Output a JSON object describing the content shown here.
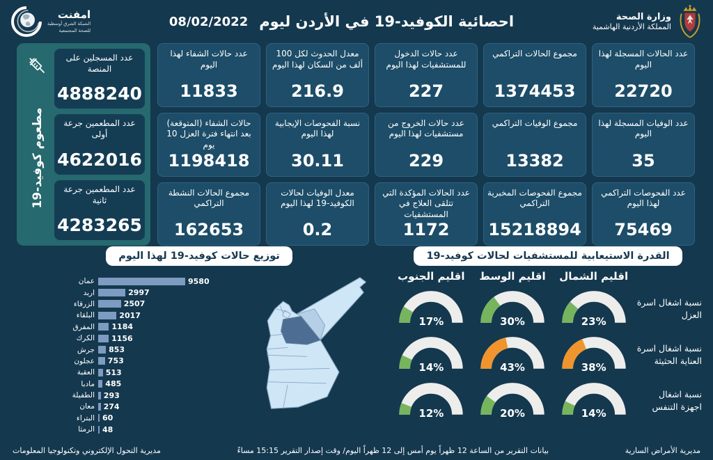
{
  "colors": {
    "green": "#76b55e",
    "orange": "#f0952d",
    "bar": "#7e9bc1",
    "gauge_track": "#ededec",
    "background": "#14384e",
    "card": "#1d4d68",
    "teal_panel": "#26696f"
  },
  "header": {
    "ministry": {
      "line1": "وزارة الصحة",
      "line2": "المملكة الأردنية الهاشمية"
    },
    "title": "احصائية الكوفيد-19 في الأردن ليوم",
    "date": "08/02/2022",
    "emphnet": {
      "name": "امفنت",
      "line1": "الشبكة الشرق أوسطية",
      "line2": "للصحة المجتمعية"
    }
  },
  "vaccination": {
    "side_label": "مطعوم كوفيد-19",
    "cards": [
      {
        "label": "عدد المسجلين على المنصة",
        "value": "4888240"
      },
      {
        "label": "عدد المطعمين جرعة أولى",
        "value": "4622016"
      },
      {
        "label": "عدد المطعمين جرعة ثانية",
        "value": "4283265"
      }
    ]
  },
  "stats": [
    {
      "label": "عدد الحالات المسجلة لهذا اليوم",
      "value": "22720"
    },
    {
      "label": "مجموع الحالات التراكمي",
      "value": "1374453"
    },
    {
      "label": "عدد حالات الدخول للمستشفيات لهذا اليوم",
      "value": "227"
    },
    {
      "label": "معدل الحدوث لكل 100 ألف من السكان لهذا اليوم",
      "value": "216.9"
    },
    {
      "label": "عدد حالات الشفاء لهذا اليوم",
      "value": "11833"
    },
    {
      "label": "عدد الوفيات المسجلة لهذا اليوم",
      "value": "35"
    },
    {
      "label": "مجموع الوفيات التراكمي",
      "value": "13382"
    },
    {
      "label": "عدد حالات الخروج من مستشفيات لهذا اليوم",
      "value": "229"
    },
    {
      "label": "نسبة الفحوصات الإيجابية لهذا اليوم",
      "value": "30.11"
    },
    {
      "label": "حالات الشفاء (المتوقعة) بعد انتهاء فترة العزل 10 يوم",
      "value": "1198418"
    },
    {
      "label": "عدد الفحوصات التراكمي لهذا اليوم",
      "value": "75469"
    },
    {
      "label": "مجموع الفحوصات المخبرية التراكمي",
      "value": "15218894"
    },
    {
      "label": "عدد الحالات المؤكدة التي تتلقى العلاج في المستشفيات",
      "value": "1172"
    },
    {
      "label": "معدل الوفيات لحالات الكوفيد-19 لهذا اليوم",
      "value": "0.2"
    },
    {
      "label": "مجموع الحالات النشطة التراكمي",
      "value": "162653"
    }
  ],
  "chart_data": [
    {
      "type": "bar",
      "orientation": "horizontal",
      "title": "توزيع حالات كوفيد-19 لهذا اليوم",
      "categories": [
        "عمان",
        "اربد",
        "الزرقاء",
        "البلقاء",
        "المفرق",
        "الكرك",
        "جرش",
        "عجلون",
        "العقبة",
        "مادبا",
        "الطفيلة",
        "معان",
        "البتراء",
        "الرمثا"
      ],
      "values": [
        9580,
        2997,
        2507,
        2017,
        1184,
        1156,
        853,
        753,
        513,
        485,
        293,
        274,
        60,
        48
      ],
      "xlim": [
        0,
        9580
      ],
      "value_labels": true,
      "bar_color": "#7e9bc1"
    },
    {
      "type": "gauge",
      "title": "القدرة الاستيعابية للمستشفيات لحالات كوفيد-19",
      "columns": [
        "اقليم الشمال",
        "اقليم الوسط",
        "اقليم الجنوب"
      ],
      "rows": [
        {
          "label": "نسبة اشغال اسرة العزل",
          "values": [
            23,
            30,
            17
          ],
          "colors": [
            "green",
            "green",
            "green"
          ]
        },
        {
          "label": "نسبة اشغال اسرة العناية الحثيثة",
          "values": [
            38,
            43,
            14
          ],
          "colors": [
            "orange",
            "orange",
            "green"
          ]
        },
        {
          "label": "نسبة اشغال اجهزة التنفس",
          "values": [
            14,
            20,
            12
          ],
          "colors": [
            "green",
            "green",
            "green"
          ]
        }
      ],
      "unit": "%"
    }
  ],
  "footer": {
    "right": "مديرية الأمراض السارية",
    "center": "بيانات التقرير من الساعة 12 ظهراً يوم أمس إلى 12 ظهراً اليوم/ وقت إصدار التقرير 15:15 مساءً",
    "left": "مديرية التحول الإلكتروني وتكنولوجيا المعلومات"
  }
}
